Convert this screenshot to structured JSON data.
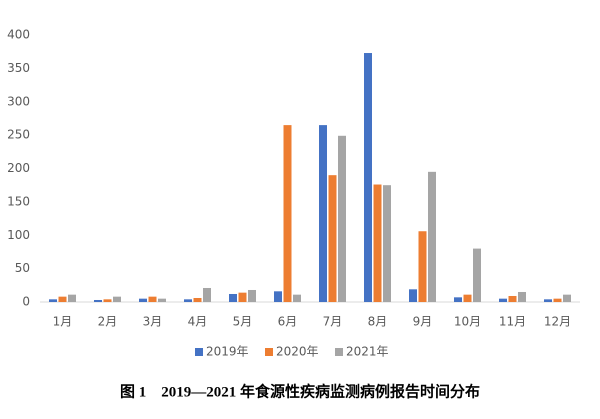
{
  "chart_data": {
    "type": "bar",
    "title": "图 1　2019—2021 年食源性疾病监测病例报告时间分布",
    "categories": [
      "1月",
      "2月",
      "3月",
      "4月",
      "5月",
      "6月",
      "7月",
      "8月",
      "9月",
      "10月",
      "11月",
      "12月"
    ],
    "series": [
      {
        "name": "2019年",
        "color": "#4472c4",
        "values": [
          4,
          3,
          5,
          4,
          12,
          16,
          265,
          373,
          19,
          7,
          5,
          4
        ]
      },
      {
        "name": "2020年",
        "color": "#ed7d31",
        "values": [
          8,
          4,
          8,
          6,
          14,
          265,
          190,
          176,
          106,
          11,
          9,
          5
        ]
      },
      {
        "name": "2021年",
        "color": "#a5a5a5",
        "values": [
          11,
          8,
          5,
          21,
          18,
          11,
          249,
          175,
          195,
          80,
          15,
          11
        ]
      }
    ],
    "ylim": [
      0,
      400
    ],
    "yticks": [
      0,
      50,
      100,
      150,
      200,
      250,
      300,
      350,
      400
    ],
    "grid": false,
    "legend": "bottom"
  }
}
